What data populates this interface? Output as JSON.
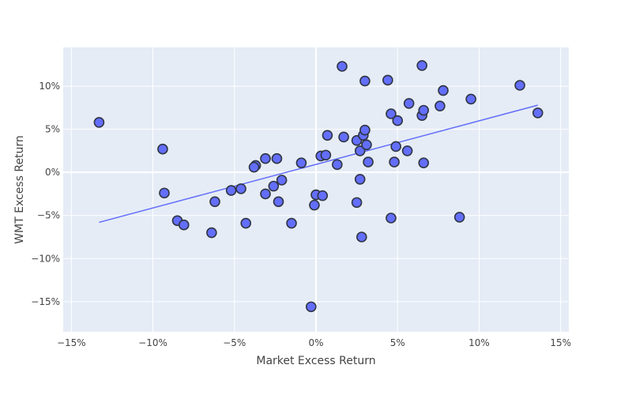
{
  "chart_data": {
    "type": "scatter",
    "xlabel": "Market Excess Return",
    "ylabel": "WMT Excess Return",
    "xlim": [
      -15.5,
      15.5
    ],
    "ylim": [
      -18.5,
      14.5
    ],
    "x_ticks": [
      -15,
      -10,
      -5,
      0,
      5,
      10,
      15
    ],
    "y_ticks": [
      -15,
      -10,
      -5,
      0,
      5,
      10
    ],
    "x_tick_labels": [
      "−15%",
      "−10%",
      "−5%",
      "0%",
      "5%",
      "10%",
      "15%"
    ],
    "y_tick_labels": [
      "−15%",
      "−10%",
      "−5%",
      "0%",
      "5%",
      "10%"
    ],
    "grid": true,
    "colors": {
      "plot_bg": "#E5ECF6",
      "grid": "#FFFFFF",
      "marker": "#636EFA",
      "marker_border": "#2F3542",
      "fit_line": "#636EFA"
    },
    "fit_line": {
      "x": [
        -13.3,
        13.6
      ],
      "y": [
        -5.8,
        7.8
      ]
    },
    "points": [
      {
        "x": -13.3,
        "y": 5.8
      },
      {
        "x": -9.4,
        "y": 2.7
      },
      {
        "x": -9.3,
        "y": -2.4
      },
      {
        "x": -8.5,
        "y": -5.6
      },
      {
        "x": -8.1,
        "y": -6.1
      },
      {
        "x": -6.4,
        "y": -7.0
      },
      {
        "x": -6.2,
        "y": -3.4
      },
      {
        "x": -5.2,
        "y": -2.1
      },
      {
        "x": -4.6,
        "y": -1.9
      },
      {
        "x": -4.3,
        "y": -5.9
      },
      {
        "x": -3.7,
        "y": 0.8
      },
      {
        "x": -3.8,
        "y": 0.6
      },
      {
        "x": -3.1,
        "y": 1.6
      },
      {
        "x": -3.1,
        "y": -2.5
      },
      {
        "x": -2.6,
        "y": -1.6
      },
      {
        "x": -2.4,
        "y": 1.6
      },
      {
        "x": -2.3,
        "y": -3.4
      },
      {
        "x": -2.1,
        "y": -0.9
      },
      {
        "x": -1.5,
        "y": -5.9
      },
      {
        "x": -0.9,
        "y": 1.1
      },
      {
        "x": -0.3,
        "y": -15.6
      },
      {
        "x": -0.1,
        "y": -3.8
      },
      {
        "x": 0.0,
        "y": -2.6
      },
      {
        "x": 0.3,
        "y": 1.9
      },
      {
        "x": 0.4,
        "y": -2.7
      },
      {
        "x": 0.6,
        "y": 2.0
      },
      {
        "x": 0.7,
        "y": 4.3
      },
      {
        "x": 1.3,
        "y": 0.9
      },
      {
        "x": 1.6,
        "y": 12.3
      },
      {
        "x": 1.7,
        "y": 4.1
      },
      {
        "x": 2.5,
        "y": 3.7
      },
      {
        "x": 2.5,
        "y": -3.5
      },
      {
        "x": 2.7,
        "y": -0.8
      },
      {
        "x": 2.7,
        "y": 2.5
      },
      {
        "x": 2.8,
        "y": -7.5
      },
      {
        "x": 2.9,
        "y": 4.3
      },
      {
        "x": 3.0,
        "y": 4.9
      },
      {
        "x": 3.0,
        "y": 10.6
      },
      {
        "x": 3.1,
        "y": 3.2
      },
      {
        "x": 3.2,
        "y": 1.2
      },
      {
        "x": 4.4,
        "y": 10.7
      },
      {
        "x": 4.6,
        "y": 6.8
      },
      {
        "x": 4.6,
        "y": -5.3
      },
      {
        "x": 4.8,
        "y": 1.2
      },
      {
        "x": 4.9,
        "y": 3.0
      },
      {
        "x": 5.0,
        "y": 6.0
      },
      {
        "x": 5.6,
        "y": 2.5
      },
      {
        "x": 5.7,
        "y": 8.0
      },
      {
        "x": 6.5,
        "y": 6.6
      },
      {
        "x": 6.5,
        "y": 12.4
      },
      {
        "x": 6.6,
        "y": 7.2
      },
      {
        "x": 6.6,
        "y": 1.1
      },
      {
        "x": 7.6,
        "y": 7.7
      },
      {
        "x": 7.8,
        "y": 9.5
      },
      {
        "x": 8.8,
        "y": -5.2
      },
      {
        "x": 9.5,
        "y": 8.5
      },
      {
        "x": 12.5,
        "y": 10.1
      },
      {
        "x": 13.6,
        "y": 6.9
      }
    ]
  }
}
